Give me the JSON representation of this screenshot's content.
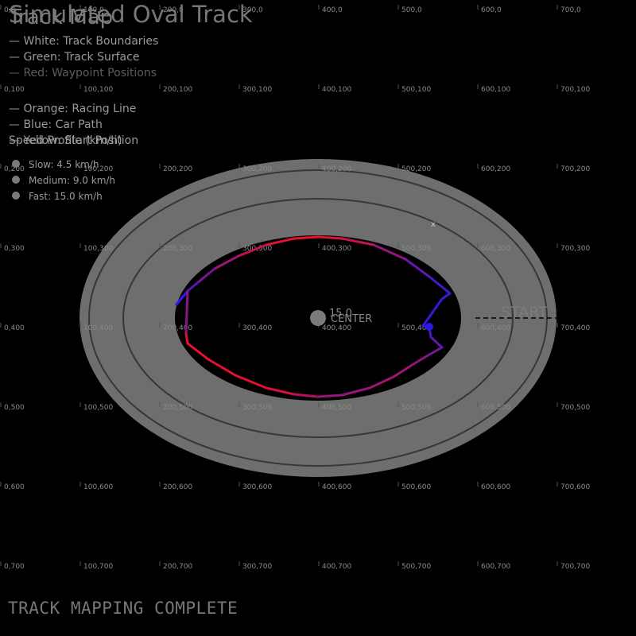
{
  "title": "Simulated Oval Track",
  "overlay_title": "Track Map",
  "legend": {
    "boundaries": "— White: Track Boundaries",
    "surface": "— Green: Track Surface",
    "waypoint": "— Red: Waypoint Positions",
    "racing_line": "— Orange: Racing Line",
    "car_path": "— Blue: Car Path",
    "start": "— Yellow: Start Position",
    "speed_header": "Speed Profile (km/h)",
    "slow": "Slow: 4.5 km/h",
    "medium": "Medium: 9.0 km/h",
    "fast": "Fast: 15.0 km/h"
  },
  "grid_labels": {
    "xs": [
      0,
      100,
      200,
      300,
      400,
      500,
      600,
      700
    ],
    "ys": [
      0,
      100,
      200,
      300,
      400,
      500,
      600,
      700
    ]
  },
  "markers": {
    "center_label": "CENTER",
    "center_value": "15.0",
    "start_label": "START"
  },
  "status": "TRACK MAPPING COMPLETE",
  "colors": {
    "background": "#000000",
    "track": "#6e6e6e",
    "path_slow": "#2a1ae6",
    "path_fast": "#e8102a",
    "marker": "#7a7a7a"
  }
}
